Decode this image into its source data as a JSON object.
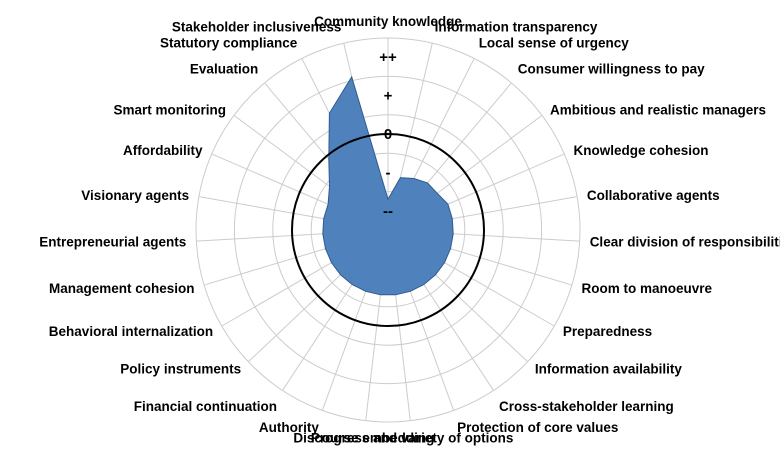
{
  "chart_data": {
    "type": "radar",
    "categories": [
      "Community knowledge",
      "Information transparency",
      "Local sense of urgency",
      "Consumer willingness to pay",
      "Ambitious and realistic managers",
      "Knowledge cohesion",
      "Collaborative agents",
      "Clear division of responsibilities",
      "Room to manoeuvre",
      "Preparedness",
      "Information availability",
      "Cross-stakeholder learning",
      "Protection of core values",
      "Progress and variety of options",
      "Discourse embedding",
      "Authority",
      "Financial continuation",
      "Policy instruments",
      "Behavioral internalization",
      "Management cohesion",
      "Entrepreneurial agents",
      "Visionary agents",
      "Affordability",
      "Smart monitoring",
      "Evaluation",
      "Statutory compliance",
      "Stakeholder inclusiveness"
    ],
    "series": [
      {
        "values": [
          -1.7,
          -1.1,
          -1.0,
          -0.9,
          -0.9,
          -0.8,
          -0.8,
          -0.8,
          -0.8,
          -0.8,
          -0.8,
          -0.8,
          -0.8,
          -0.8,
          -0.8,
          -0.8,
          -0.8,
          -0.8,
          -0.8,
          -0.8,
          -0.8,
          -0.8,
          -0.8,
          -0.6,
          -0.1,
          0.9,
          1.6
        ]
      }
    ],
    "tick_labels": [
      "--",
      "-",
      "0",
      "+",
      "++"
    ],
    "rlim": [
      -2.5,
      2.5
    ],
    "reference_ring": 0,
    "grid": true,
    "colors": {
      "fill": "#4f81bd",
      "stroke": "#2f5c8f",
      "grid": "#cccccc",
      "reference": "#000000"
    }
  }
}
